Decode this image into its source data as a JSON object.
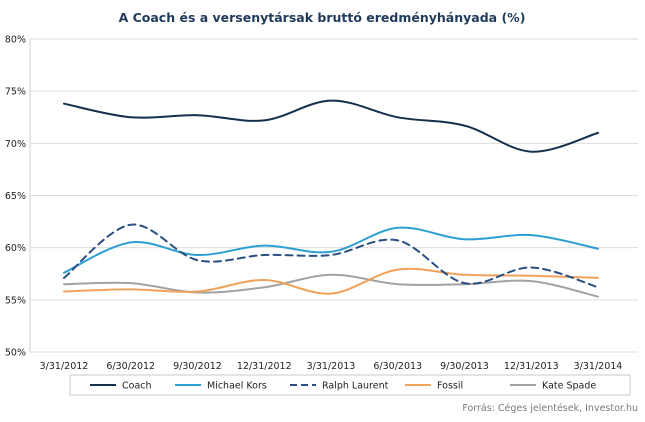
{
  "chart_data": {
    "type": "line",
    "title": "A Coach és a versenytársak bruttó eredményhányada (%)",
    "source": "Forrás: Céges jelentések, Investor.hu",
    "xlabel": "",
    "ylabel": "",
    "ylim": [
      50,
      80
    ],
    "grid": "horizontal",
    "legend_position": "bottom",
    "categories": [
      "3/31/2012",
      "6/30/2012",
      "9/30/2012",
      "12/31/2012",
      "3/31/2013",
      "6/30/2013",
      "9/30/2013",
      "12/31/2013",
      "3/31/2014"
    ],
    "yticks": [
      "50%",
      "55%",
      "60%",
      "65%",
      "70%",
      "75%",
      "80%"
    ],
    "series": [
      {
        "name": "Coach",
        "color": "#152f4e",
        "dash": "solid",
        "values": [
          73.8,
          72.5,
          72.7,
          72.2,
          74.1,
          72.5,
          71.7,
          69.2,
          71.0
        ]
      },
      {
        "name": "Michael Kors",
        "color": "#2e9fd3",
        "dash": "solid",
        "values": [
          57.6,
          60.5,
          59.3,
          60.2,
          59.6,
          61.9,
          60.8,
          61.2,
          59.9
        ]
      },
      {
        "name": "Ralph Laurent",
        "color": "#2a4f82",
        "dash": "dashed",
        "values": [
          57.1,
          62.2,
          58.8,
          59.3,
          59.3,
          60.7,
          56.6,
          58.1,
          56.2
        ]
      },
      {
        "name": "Fossil",
        "color": "#f0a25a",
        "dash": "solid",
        "values": [
          55.8,
          56.0,
          55.8,
          56.9,
          55.6,
          57.9,
          57.4,
          57.3,
          57.1
        ]
      },
      {
        "name": "Kate Spade",
        "color": "#a2a2a2",
        "dash": "solid",
        "values": [
          56.5,
          56.6,
          55.7,
          56.2,
          57.4,
          56.5,
          56.5,
          56.8,
          55.3
        ]
      }
    ]
  }
}
